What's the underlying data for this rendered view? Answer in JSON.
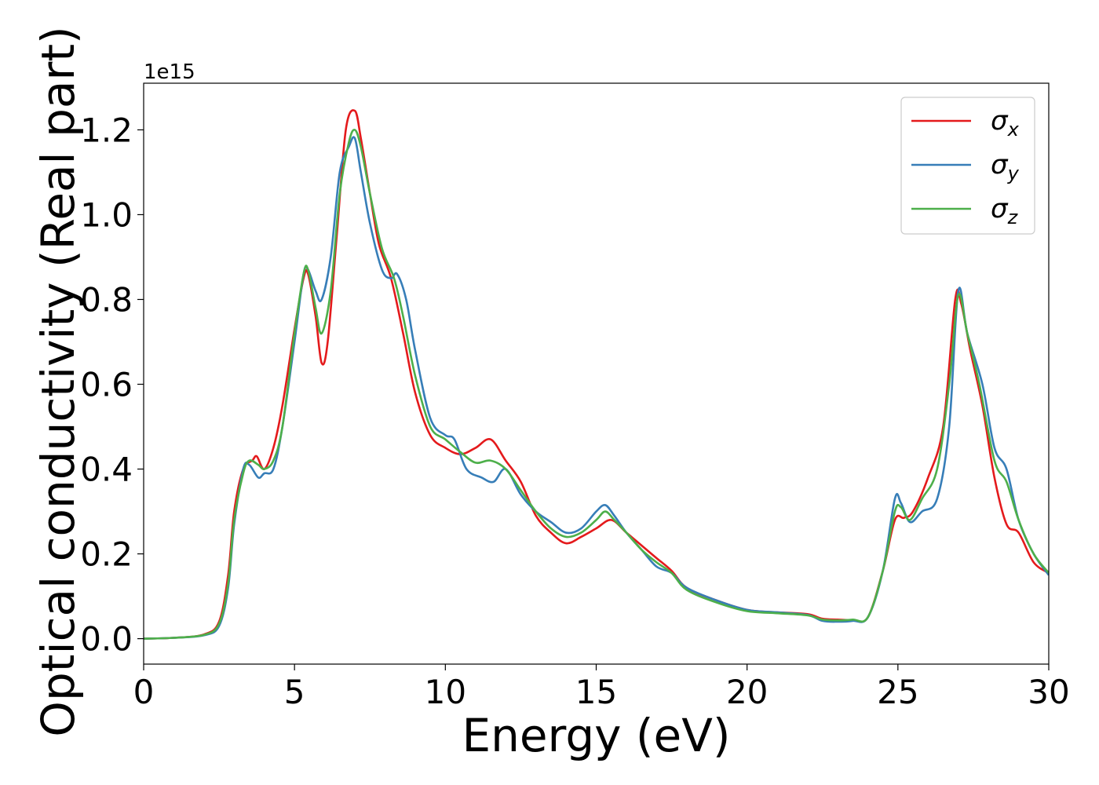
{
  "chart_data": {
    "type": "line",
    "xlabel": "Energy (eV)",
    "ylabel": "Optical conductivity (Real part)",
    "offset_text": "1e15",
    "xlim": [
      0,
      30
    ],
    "ylim": [
      -0.06,
      1.31
    ],
    "xticks": [
      0,
      5,
      10,
      15,
      20,
      25,
      30
    ],
    "xtick_labels": [
      "0",
      "5",
      "10",
      "15",
      "20",
      "25",
      "30"
    ],
    "yticks": [
      0.0,
      0.2,
      0.4,
      0.6,
      0.8,
      1.0,
      1.2
    ],
    "ytick_labels": [
      "0.0",
      "0.2",
      "0.4",
      "0.6",
      "0.8",
      "1.0",
      "1.2"
    ],
    "grid": false,
    "legend": {
      "position": "top-right"
    },
    "series": [
      {
        "name": "σx",
        "symbol": "σ",
        "subscript": "x",
        "color": "#e41a1c",
        "x": [
          0,
          1,
          2,
          2.5,
          2.8,
          3.0,
          3.3,
          3.6,
          3.75,
          4.0,
          4.3,
          4.6,
          5.0,
          5.3,
          5.45,
          5.7,
          5.9,
          6.1,
          6.4,
          6.7,
          7.0,
          7.2,
          7.5,
          7.8,
          8.2,
          8.6,
          9.0,
          9.5,
          10.0,
          10.5,
          11.0,
          11.5,
          12.0,
          12.5,
          13.0,
          13.5,
          14.0,
          14.5,
          15.0,
          15.5,
          16.0,
          16.5,
          17.0,
          17.5,
          18.0,
          19.0,
          20.0,
          21.0,
          22.0,
          22.5,
          23.0,
          23.5,
          24.0,
          24.5,
          24.9,
          25.2,
          25.5,
          26.0,
          26.5,
          26.9,
          27.1,
          27.4,
          27.8,
          28.2,
          28.6,
          29.0,
          29.5,
          30.0
        ],
        "y": [
          0.0,
          0.002,
          0.01,
          0.04,
          0.15,
          0.3,
          0.4,
          0.42,
          0.43,
          0.4,
          0.45,
          0.55,
          0.73,
          0.85,
          0.86,
          0.76,
          0.65,
          0.7,
          0.95,
          1.2,
          1.245,
          1.18,
          1.05,
          0.93,
          0.85,
          0.72,
          0.58,
          0.48,
          0.45,
          0.435,
          0.45,
          0.47,
          0.42,
          0.37,
          0.29,
          0.25,
          0.225,
          0.24,
          0.26,
          0.28,
          0.25,
          0.22,
          0.19,
          0.16,
          0.12,
          0.09,
          0.068,
          0.062,
          0.058,
          0.047,
          0.045,
          0.044,
          0.05,
          0.16,
          0.28,
          0.285,
          0.3,
          0.38,
          0.5,
          0.8,
          0.79,
          0.68,
          0.55,
          0.38,
          0.27,
          0.25,
          0.18,
          0.155
        ]
      },
      {
        "name": "σy",
        "symbol": "σ",
        "subscript": "y",
        "color": "#377eb8",
        "x": [
          0,
          1,
          2,
          2.5,
          2.8,
          3.0,
          3.3,
          3.5,
          3.8,
          4.0,
          4.3,
          4.6,
          5.0,
          5.3,
          5.45,
          5.7,
          5.9,
          6.2,
          6.5,
          6.8,
          7.0,
          7.2,
          7.5,
          7.9,
          8.2,
          8.4,
          8.7,
          9.0,
          9.5,
          10.0,
          10.3,
          10.7,
          11.2,
          11.6,
          12.0,
          12.5,
          13.0,
          13.5,
          14.0,
          14.5,
          15.0,
          15.3,
          15.6,
          16.0,
          16.5,
          17.0,
          17.5,
          18.0,
          19.0,
          20.0,
          21.0,
          22.0,
          22.5,
          23.0,
          23.5,
          24.0,
          24.5,
          24.9,
          25.1,
          25.4,
          25.8,
          26.3,
          26.7,
          27.0,
          27.3,
          27.8,
          28.2,
          28.6,
          29.0,
          29.5,
          30.0
        ],
        "y": [
          0.0,
          0.002,
          0.008,
          0.03,
          0.12,
          0.27,
          0.4,
          0.41,
          0.38,
          0.39,
          0.4,
          0.5,
          0.7,
          0.86,
          0.87,
          0.82,
          0.8,
          0.9,
          1.1,
          1.16,
          1.18,
          1.1,
          0.98,
          0.87,
          0.85,
          0.86,
          0.8,
          0.68,
          0.52,
          0.48,
          0.47,
          0.4,
          0.38,
          0.37,
          0.4,
          0.34,
          0.3,
          0.275,
          0.25,
          0.26,
          0.3,
          0.315,
          0.29,
          0.25,
          0.21,
          0.17,
          0.155,
          0.12,
          0.09,
          0.068,
          0.062,
          0.056,
          0.042,
          0.04,
          0.042,
          0.05,
          0.16,
          0.33,
          0.32,
          0.275,
          0.3,
          0.33,
          0.5,
          0.82,
          0.72,
          0.6,
          0.45,
          0.4,
          0.28,
          0.2,
          0.15
        ]
      },
      {
        "name": "σz",
        "symbol": "σ",
        "subscript": "z",
        "color": "#4daf4a",
        "x": [
          0,
          1,
          2,
          2.5,
          2.8,
          3.0,
          3.3,
          3.5,
          3.8,
          4.0,
          4.3,
          4.6,
          5.0,
          5.3,
          5.45,
          5.7,
          5.9,
          6.2,
          6.5,
          6.8,
          7.0,
          7.2,
          7.5,
          7.9,
          8.3,
          8.6,
          9.0,
          9.5,
          10.0,
          10.5,
          11.0,
          11.5,
          12.0,
          12.5,
          13.0,
          13.5,
          14.0,
          14.5,
          15.0,
          15.3,
          15.6,
          16.0,
          16.5,
          17.0,
          17.5,
          18.0,
          19.0,
          20.0,
          21.0,
          22.0,
          22.5,
          23.0,
          23.5,
          24.0,
          24.5,
          24.9,
          25.1,
          25.4,
          25.8,
          26.3,
          26.7,
          27.0,
          27.3,
          27.7,
          28.2,
          28.6,
          29.0,
          29.5,
          30.0
        ],
        "y": [
          0.0,
          0.002,
          0.009,
          0.035,
          0.13,
          0.28,
          0.39,
          0.42,
          0.41,
          0.4,
          0.42,
          0.5,
          0.72,
          0.86,
          0.87,
          0.78,
          0.72,
          0.82,
          1.05,
          1.17,
          1.2,
          1.16,
          1.05,
          0.92,
          0.85,
          0.76,
          0.62,
          0.5,
          0.47,
          0.44,
          0.415,
          0.42,
          0.4,
          0.35,
          0.3,
          0.26,
          0.24,
          0.25,
          0.28,
          0.3,
          0.28,
          0.25,
          0.21,
          0.18,
          0.155,
          0.115,
          0.085,
          0.065,
          0.06,
          0.055,
          0.045,
          0.043,
          0.045,
          0.05,
          0.16,
          0.3,
          0.31,
          0.28,
          0.33,
          0.4,
          0.6,
          0.81,
          0.72,
          0.6,
          0.42,
          0.37,
          0.28,
          0.2,
          0.155
        ]
      }
    ]
  }
}
